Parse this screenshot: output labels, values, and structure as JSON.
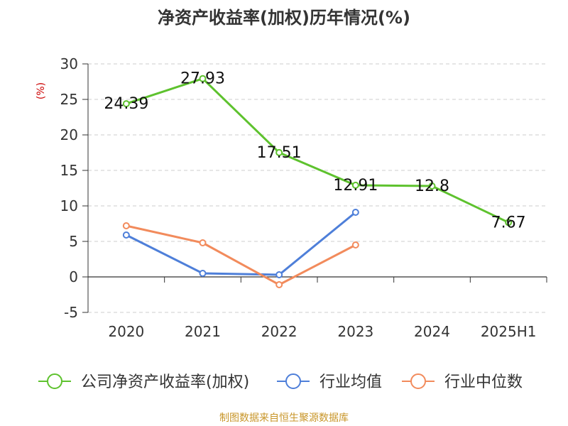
{
  "chart_data": {
    "type": "line",
    "title": "净资产收益率(加权)历年情况(%)",
    "ylabel": "(%)",
    "categories": [
      "2020",
      "2021",
      "2022",
      "2023",
      "2024",
      "2025H1"
    ],
    "ylim": [
      -5,
      30
    ],
    "yticks": [
      30,
      25,
      20,
      15,
      10,
      5,
      0,
      -5
    ],
    "grid": true,
    "legend_position": "bottom",
    "series": [
      {
        "name": "公司净资产收益率(加权)",
        "color": "#5ec22e",
        "values": [
          24.39,
          27.93,
          17.51,
          12.91,
          12.8,
          7.67
        ],
        "labels": [
          "24.39",
          "27.93",
          "17.51",
          "12.91",
          "12.8",
          "7.67"
        ]
      },
      {
        "name": "行业均值",
        "color": "#4e7fd9",
        "values": [
          5.9,
          0.5,
          0.3,
          9.1,
          null,
          null
        ]
      },
      {
        "name": "行业中位数",
        "color": "#f28b5c",
        "values": [
          7.2,
          4.8,
          -1.1,
          4.5,
          null,
          null
        ]
      }
    ]
  },
  "source": "制图数据来自恒生聚源数据库"
}
